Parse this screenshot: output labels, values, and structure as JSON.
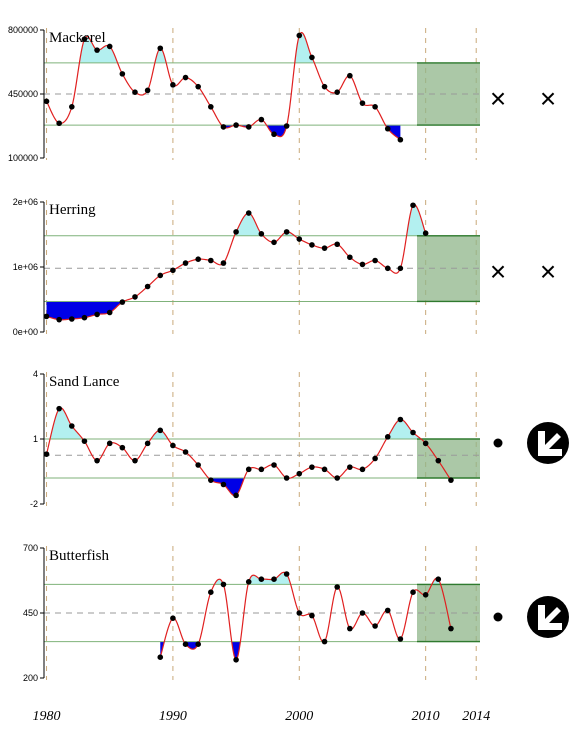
{
  "chart_data": {
    "type": "line",
    "x_ticks": [
      1980,
      1990,
      2000,
      2010,
      2014
    ],
    "xlim": [
      1979.8,
      2014.3
    ],
    "panels": [
      {
        "title": "Mackerel",
        "ylim": [
          100000,
          800000
        ],
        "y_ticks": [
          "800000",
          "450000",
          "100000"
        ],
        "y_tick_values": [
          800000,
          450000,
          100000
        ],
        "upper_band": 620000,
        "mean_line": 450000,
        "lower_band": 280000,
        "x": [
          1980,
          1981,
          1982,
          1983,
          1984,
          1985,
          1986,
          1987,
          1988,
          1989,
          1990,
          1991,
          1992,
          1993,
          1994,
          1995,
          1996,
          1997,
          1998,
          1999,
          2000,
          2001,
          2002,
          2003,
          2004,
          2005,
          2006,
          2007,
          2008
        ],
        "values": [
          410000,
          290000,
          380000,
          750000,
          690000,
          710000,
          560000,
          460000,
          470000,
          700000,
          500000,
          540000,
          490000,
          380000,
          270000,
          280000,
          270000,
          310000,
          230000,
          275000,
          770000,
          650000,
          490000,
          460000,
          550000,
          400000,
          380000,
          260000,
          200000
        ],
        "trend_symbols": [
          "x",
          "x"
        ]
      },
      {
        "title": "Herring",
        "ylim": [
          0,
          2000000
        ],
        "y_ticks": [
          "2e+06",
          "1e+06",
          "0e+00"
        ],
        "y_tick_values": [
          2000000,
          1000000,
          0
        ],
        "upper_band": 1480000,
        "mean_line": 980000,
        "lower_band": 470000,
        "x": [
          1980,
          1981,
          1982,
          1983,
          1984,
          1985,
          1986,
          1987,
          1988,
          1989,
          1990,
          1991,
          1992,
          1993,
          1994,
          1995,
          1996,
          1997,
          1998,
          1999,
          2000,
          2001,
          2002,
          2003,
          2004,
          2005,
          2006,
          2007,
          2008,
          2009,
          2010
        ],
        "values": [
          240000,
          190000,
          200000,
          220000,
          270000,
          300000,
          460000,
          540000,
          700000,
          870000,
          950000,
          1060000,
          1120000,
          1100000,
          1060000,
          1540000,
          1830000,
          1510000,
          1380000,
          1540000,
          1430000,
          1340000,
          1290000,
          1350000,
          1150000,
          1040000,
          1100000,
          980000,
          980000,
          1950000,
          1520000
        ],
        "trend_symbols": [
          "x",
          "x"
        ]
      },
      {
        "title": "Sand Lance",
        "ylim": [
          -2,
          4
        ],
        "y_ticks": [
          "4",
          "1",
          "-2"
        ],
        "y_tick_values": [
          4,
          1,
          -2
        ],
        "upper_band": 1.0,
        "mean_line": 0.25,
        "lower_band": -0.8,
        "x": [
          1980,
          1981,
          1982,
          1983,
          1984,
          1985,
          1986,
          1987,
          1988,
          1989,
          1990,
          1991,
          1992,
          1993,
          1994,
          1995,
          1996,
          1997,
          1998,
          1999,
          2000,
          2001,
          2002,
          2003,
          2004,
          2005,
          2006,
          2007,
          2008,
          2009,
          2010,
          2011,
          2012
        ],
        "values": [
          0.3,
          2.4,
          1.6,
          0.9,
          0.0,
          0.8,
          0.6,
          0.0,
          0.8,
          1.4,
          0.7,
          0.4,
          -0.2,
          -0.9,
          -1.1,
          -1.6,
          -0.4,
          -0.4,
          -0.2,
          -0.8,
          -0.6,
          -0.3,
          -0.4,
          -0.8,
          -0.3,
          -0.4,
          0.1,
          1.1,
          1.9,
          1.3,
          0.8,
          0.0,
          -0.9
        ],
        "trend_symbols": [
          "dot",
          "arrow"
        ]
      },
      {
        "title": "Butterfish",
        "ylim": [
          200,
          700
        ],
        "y_ticks": [
          "700",
          "450",
          "200"
        ],
        "y_tick_values": [
          700,
          450,
          200
        ],
        "upper_band": 560,
        "mean_line": 450,
        "lower_band": 340,
        "x": [
          1989,
          1990,
          1991,
          1992,
          1993,
          1994,
          1995,
          1996,
          1997,
          1998,
          1999,
          2000,
          2001,
          2002,
          2003,
          2004,
          2005,
          2006,
          2007,
          2008,
          2009,
          2010,
          2011,
          2012
        ],
        "values": [
          280,
          430,
          330,
          330,
          530,
          560,
          270,
          570,
          580,
          580,
          600,
          450,
          440,
          340,
          550,
          390,
          450,
          400,
          460,
          350,
          530,
          520,
          580,
          390
        ],
        "trend_symbols": [
          "dot",
          "arrow"
        ]
      }
    ],
    "grid": "vertical dashed lines at x ticks",
    "legend": "none"
  }
}
